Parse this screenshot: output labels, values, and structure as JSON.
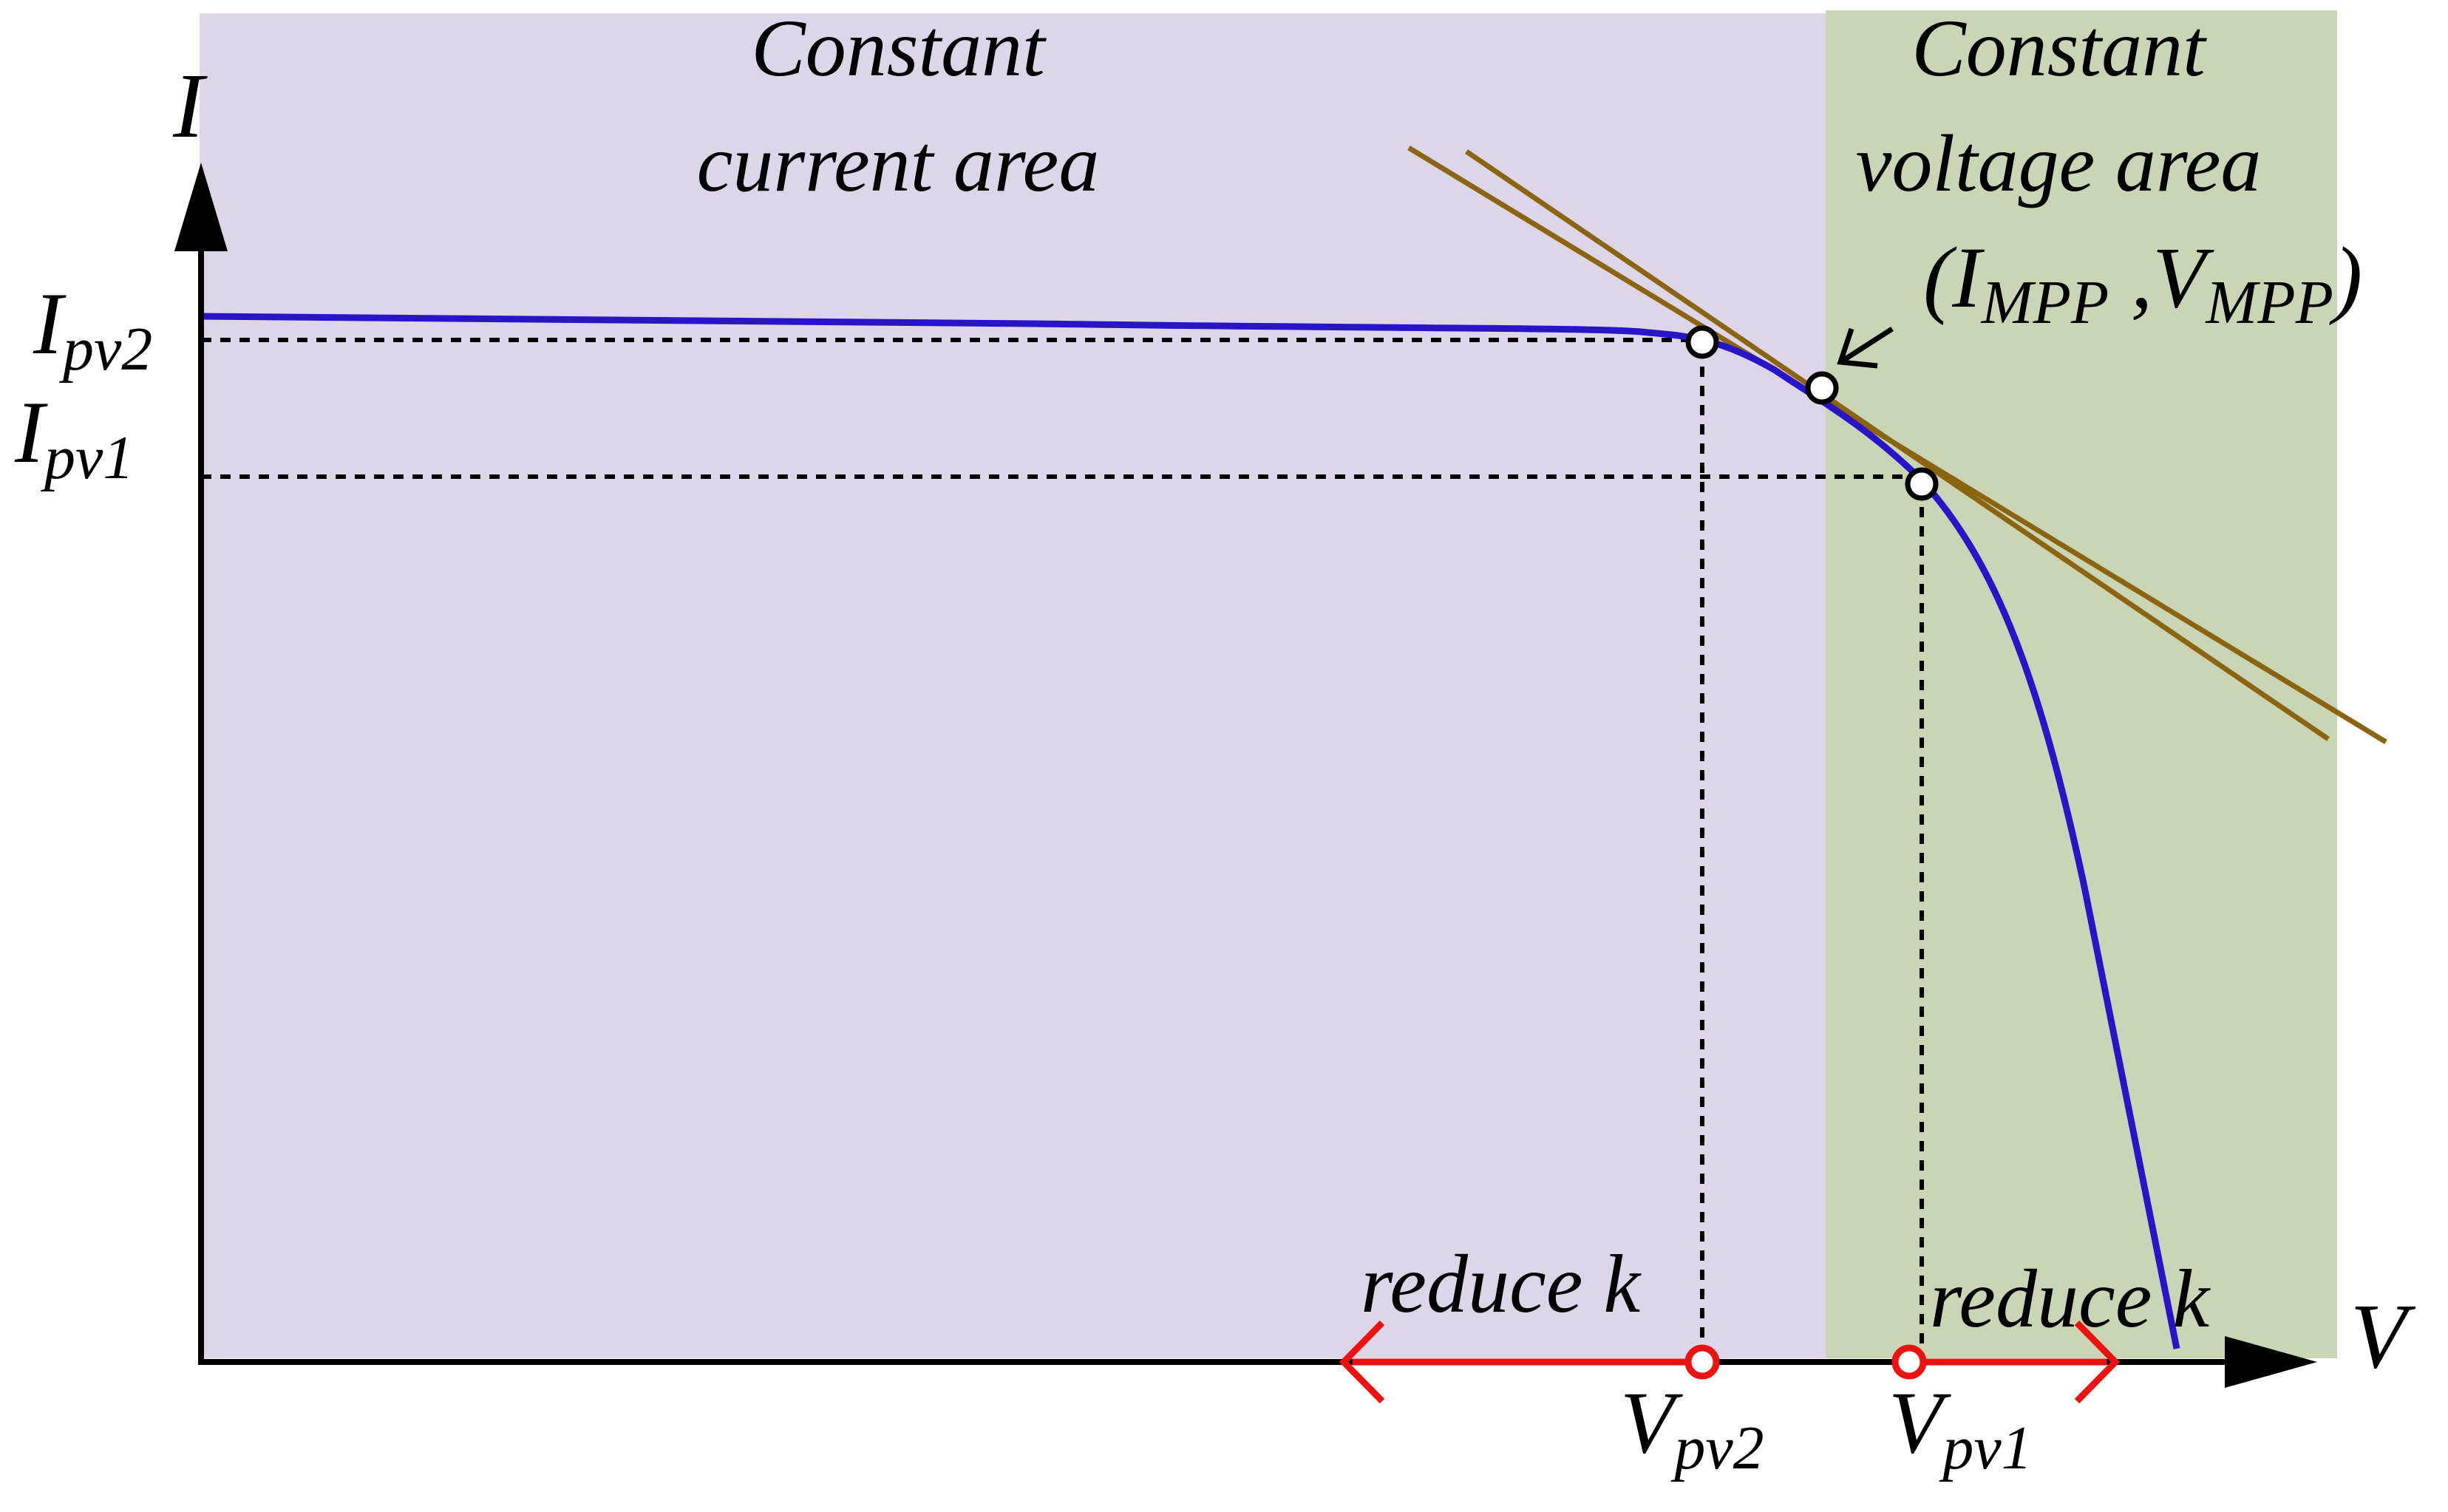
{
  "axes": {
    "y_label": "I",
    "x_label": "V"
  },
  "regions": {
    "left": {
      "line1": "Constant",
      "line2": "current area",
      "color": "#ddd6e8"
    },
    "right": {
      "line1": "Constant",
      "line2": "voltage area",
      "color": "#c9d5b4"
    }
  },
  "current_levels": {
    "i_pv2": {
      "main": "I",
      "sub": "pv2"
    },
    "i_pv1": {
      "main": "I",
      "sub": "pv1"
    }
  },
  "voltage_levels": {
    "v_pv2": {
      "main": "V",
      "sub": "pv2"
    },
    "v_pv1": {
      "main": "V",
      "sub": "pv1"
    }
  },
  "mpp": {
    "open": "(",
    "i_main": "I",
    "i_sub": "MPP",
    "sep": " ,",
    "v_main": "V",
    "v_sub": "MPP",
    "close": ")"
  },
  "arrows": {
    "left_label": "reduce k",
    "right_label": "reduce k"
  },
  "colors": {
    "curve": "#2a14c8",
    "load_lines": "#8a6410",
    "arrows": "#ee1111",
    "axes": "#000000"
  }
}
